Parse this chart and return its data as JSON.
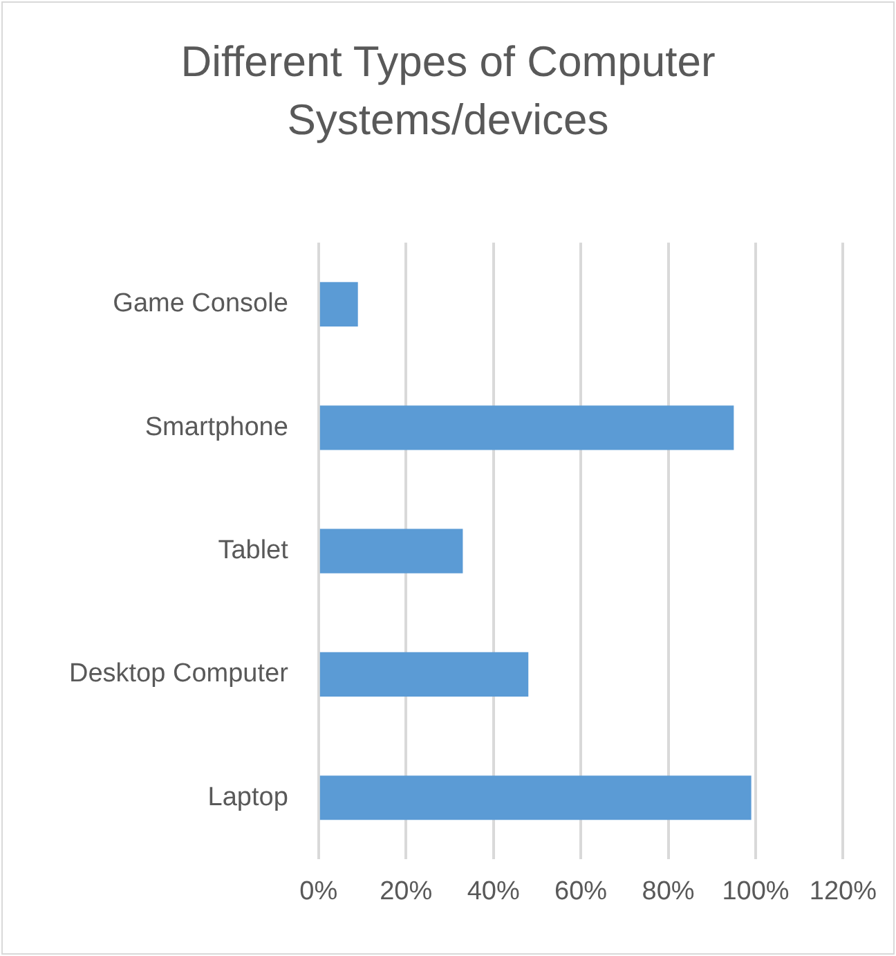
{
  "chart_data": {
    "type": "bar",
    "orientation": "horizontal",
    "title": "Different Types of Computer Systems/devices",
    "categories": [
      "Game Console",
      "Smartphone",
      "Tablet",
      "Desktop Computer",
      "Laptop"
    ],
    "values": [
      9,
      95,
      33,
      48,
      99
    ],
    "color": "#5b9bd5",
    "xlim": [
      0,
      120
    ],
    "xticks": [
      {
        "value": 0,
        "label": "0%"
      },
      {
        "value": 20,
        "label": "20%"
      },
      {
        "value": 40,
        "label": "40%"
      },
      {
        "value": 60,
        "label": "60%"
      },
      {
        "value": 80,
        "label": "80%"
      },
      {
        "value": 100,
        "label": "100%"
      },
      {
        "value": 120,
        "label": "120%"
      }
    ],
    "grid": "x",
    "legend": false
  }
}
